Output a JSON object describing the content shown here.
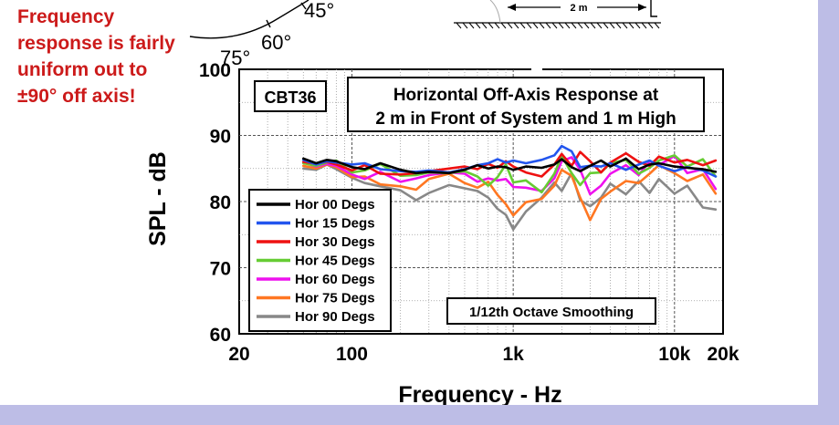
{
  "note": "Frequency response is fairly uniform out to ±90° off axis!",
  "polar": {
    "label_45": "45°",
    "label_60": "60°",
    "label_75": "75°"
  },
  "diagram": {
    "distance_label": "2 m"
  },
  "chart_data": {
    "type": "line",
    "title_line1": "Horizontal Off-Axis Response at",
    "title_line2": "2 m in Front of System and 1 m High",
    "tag": "CBT36",
    "annotation": "1/12th Octave Smoothing",
    "xlabel": "Frequency - Hz",
    "ylabel": "SPL - dB",
    "xscale": "log",
    "xlim": [
      20,
      20000
    ],
    "ylim": [
      60,
      100
    ],
    "grid": true,
    "legend_position": "lower-left",
    "x_ticks": [
      {
        "label": "20",
        "value": 20
      },
      {
        "label": "100",
        "value": 100
      },
      {
        "label": "1k",
        "value": 1000
      },
      {
        "label": "10k",
        "value": 10000
      },
      {
        "label": "20k",
        "value": 20000
      }
    ],
    "y_ticks": [
      {
        "label": "60",
        "value": 60
      },
      {
        "label": "70",
        "value": 70
      },
      {
        "label": "80",
        "value": 80
      },
      {
        "label": "90",
        "value": 90
      },
      {
        "label": "100",
        "value": 100
      }
    ],
    "x": [
      50,
      60,
      70,
      80,
      100,
      120,
      150,
      200,
      250,
      300,
      400,
      500,
      600,
      700,
      800,
      900,
      1000,
      1200,
      1500,
      1800,
      2000,
      2300,
      2600,
      3000,
      3500,
      4000,
      5000,
      6000,
      7000,
      8000,
      10000,
      12000,
      15000,
      18000
    ],
    "series": [
      {
        "name": "Hor 00 Degs",
        "color": "#000000",
        "values": [
          86.5,
          85.8,
          86.3,
          86.1,
          85.2,
          84.9,
          85.8,
          84.8,
          84.3,
          84.5,
          84.3,
          84.8,
          85.5,
          85.0,
          85.3,
          85.2,
          84.8,
          85.3,
          85.1,
          85.6,
          86.4,
          85.2,
          84.6,
          85.4,
          86.2,
          85.3,
          86.5,
          84.9,
          85.6,
          85.8,
          85.3,
          85.1,
          84.9,
          84.5
        ]
      },
      {
        "name": "Hor 15 Degs",
        "color": "#2255ee",
        "values": [
          86.3,
          85.6,
          86.1,
          85.9,
          85.6,
          85.8,
          84.9,
          84.6,
          84.5,
          84.7,
          84.4,
          84.9,
          85.5,
          85.8,
          86.4,
          85.9,
          86.2,
          85.8,
          86.3,
          87.0,
          88.4,
          87.6,
          85.2,
          85.4,
          85.3,
          85.8,
          84.8,
          85.6,
          86.2,
          85.4,
          84.6,
          85.2,
          84.7,
          83.8
        ]
      },
      {
        "name": "Hor 30 Degs",
        "color": "#ee1111",
        "values": [
          86.0,
          85.7,
          86.0,
          85.6,
          84.7,
          85.5,
          84.2,
          84.1,
          84.3,
          84.6,
          85.0,
          85.3,
          84.9,
          85.7,
          85.1,
          86.1,
          85.3,
          84.4,
          83.8,
          85.6,
          87.2,
          85.4,
          87.5,
          86.1,
          84.4,
          85.9,
          87.3,
          86.0,
          85.4,
          86.8,
          85.9,
          86.3,
          85.5,
          86.2
        ]
      },
      {
        "name": "Hor 45 Degs",
        "color": "#66cc33",
        "values": [
          85.8,
          85.4,
          85.9,
          86.2,
          84.4,
          84.7,
          85.7,
          83.9,
          84.0,
          84.4,
          84.3,
          84.6,
          83.8,
          82.4,
          83.7,
          85.6,
          82.9,
          83.2,
          81.4,
          84.2,
          86.9,
          84.3,
          82.5,
          84.3,
          84.4,
          85.8,
          86.3,
          84.2,
          85.1,
          86.2,
          87.0,
          85.3,
          86.4,
          83.8
        ]
      },
      {
        "name": "Hor 60 Degs",
        "color": "#ee11ee",
        "values": [
          85.9,
          85.3,
          85.7,
          85.4,
          84.1,
          83.4,
          84.5,
          83.0,
          83.5,
          84.0,
          84.4,
          84.2,
          83.0,
          83.5,
          83.2,
          83.4,
          82.2,
          82.1,
          81.6,
          83.5,
          86.1,
          86.7,
          84.8,
          81.1,
          82.4,
          84.2,
          85.5,
          84.0,
          86.1,
          85.5,
          86.9,
          84.3,
          84.9,
          81.9
        ]
      },
      {
        "name": "Hor 75 Degs",
        "color": "#ff7722",
        "values": [
          85.4,
          85.0,
          85.6,
          85.2,
          83.7,
          83.8,
          82.6,
          82.3,
          81.8,
          83.4,
          84.2,
          82.8,
          82.1,
          83.0,
          81.0,
          79.6,
          77.9,
          79.9,
          80.4,
          82.4,
          84.8,
          83.9,
          80.6,
          77.2,
          80.4,
          81.5,
          83.1,
          82.8,
          84.2,
          85.5,
          84.3,
          83.1,
          84.1,
          81.2
        ]
      },
      {
        "name": "Hor 90 Degs",
        "color": "#888888",
        "values": [
          85.0,
          84.8,
          85.6,
          84.9,
          83.6,
          82.8,
          82.3,
          81.7,
          80.2,
          81.3,
          82.5,
          82.0,
          81.6,
          80.6,
          78.9,
          78.0,
          75.8,
          78.5,
          80.6,
          82.9,
          81.6,
          84.3,
          80.2,
          79.3,
          80.6,
          82.7,
          81.1,
          83.1,
          81.3,
          83.4,
          81.2,
          82.4,
          79.1,
          78.8
        ]
      }
    ]
  }
}
